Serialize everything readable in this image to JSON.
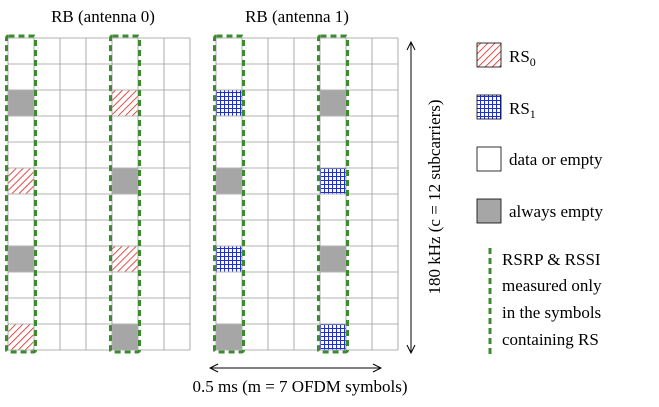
{
  "figure": {
    "rb0_title": "RB (antenna 0)",
    "rb1_title": "RB (antenna 1)",
    "freq_label": "180 kHz (c = 12 subcarriers)",
    "time_label": "0.5 ms (m = 7 OFDM symbols)",
    "cols": 7,
    "rows": 12,
    "highlight_cols": [
      0,
      4
    ]
  },
  "grids": [
    {
      "cells": [
        {
          "row": 2,
          "col": 0,
          "kind": "empty"
        },
        {
          "row": 2,
          "col": 4,
          "kind": "rs0"
        },
        {
          "row": 5,
          "col": 0,
          "kind": "rs0"
        },
        {
          "row": 5,
          "col": 4,
          "kind": "empty"
        },
        {
          "row": 8,
          "col": 0,
          "kind": "empty"
        },
        {
          "row": 8,
          "col": 4,
          "kind": "rs0"
        },
        {
          "row": 11,
          "col": 0,
          "kind": "rs0"
        },
        {
          "row": 11,
          "col": 4,
          "kind": "empty"
        }
      ]
    },
    {
      "cells": [
        {
          "row": 2,
          "col": 0,
          "kind": "rs1"
        },
        {
          "row": 2,
          "col": 4,
          "kind": "empty"
        },
        {
          "row": 5,
          "col": 0,
          "kind": "empty"
        },
        {
          "row": 5,
          "col": 4,
          "kind": "rs1"
        },
        {
          "row": 8,
          "col": 0,
          "kind": "rs1"
        },
        {
          "row": 8,
          "col": 4,
          "kind": "empty"
        },
        {
          "row": 11,
          "col": 0,
          "kind": "empty"
        },
        {
          "row": 11,
          "col": 4,
          "kind": "rs1"
        }
      ]
    }
  ],
  "legend": {
    "rs0_label": "RS",
    "rs0_sub": "0",
    "rs1_label": "RS",
    "rs1_sub": "1",
    "data_label": "data or empty",
    "empty_label": "always empty",
    "rsrp_lines": [
      "RSRP & RSSI",
      "measured only",
      "in the symbols",
      "containing RS"
    ]
  },
  "colors": {
    "rs0": "#e0201c",
    "rs1": "#1f2fcc",
    "empty": "#a6a6a6",
    "grid": "#9a9a9a",
    "highlight": "#3d8b2f"
  }
}
